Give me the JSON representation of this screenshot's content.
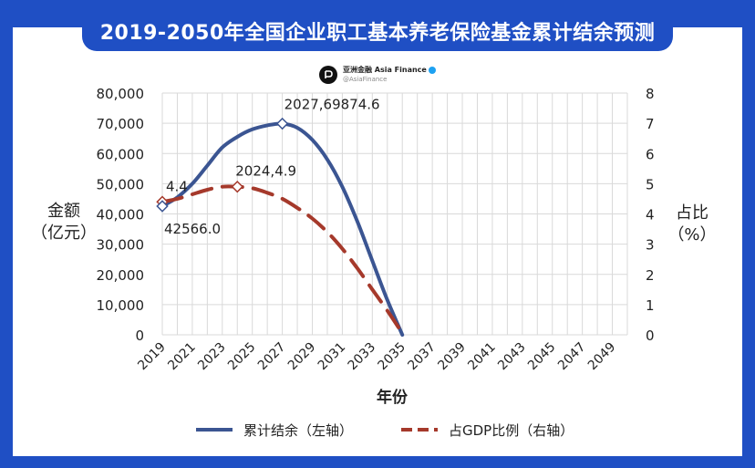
{
  "title": "2019-2050年全国企业职工基本养老保险基金累计结余预测",
  "brand": {
    "name": "亚洲金融 Asia Finance",
    "handle": "@AsiaFinance"
  },
  "colors": {
    "frame": "#1f4fc4",
    "balance": "#3b5592",
    "gdp_ratio": "#a5392b",
    "grid": "#d9d9d9"
  },
  "y_left_label": {
    "line1": "金额",
    "line2": "（亿元）"
  },
  "y_right_label": {
    "line1": "占比",
    "line2": "（%）"
  },
  "x_axis_label": "年份",
  "legend": {
    "balance": "累计结余（左轴）",
    "gdp_ratio": "占GDP比例（右轴）"
  },
  "chart_data": {
    "type": "line",
    "title": "2019-2050年全国企业职工基本养老保险基金累计结余预测",
    "xlabel": "年份",
    "ylabel": "金额（亿元）",
    "ylabel_right": "占比（%）",
    "x_ticks": [
      "2019",
      "2021",
      "2023",
      "2025",
      "2027",
      "2029",
      "2031",
      "2033",
      "2035",
      "2037",
      "2039",
      "2041",
      "2043",
      "2045",
      "2047",
      "2049"
    ],
    "xlim": [
      2019,
      2050
    ],
    "ylim": [
      0,
      80000
    ],
    "ylim_right": [
      0,
      8
    ],
    "y_ticks": [
      "0",
      "10,000",
      "20,000",
      "30,000",
      "40,000",
      "50,000",
      "60,000",
      "70,000",
      "80,000"
    ],
    "y_ticks_right": [
      "0",
      "1",
      "2",
      "3",
      "4",
      "5",
      "6",
      "7",
      "8"
    ],
    "grid": true,
    "series": [
      {
        "name": "累计结余（左轴）",
        "axis": "left",
        "style": "solid",
        "x": [
          2019,
          2020,
          2021,
          2022,
          2023,
          2024,
          2025,
          2026,
          2027,
          2028,
          2029,
          2030,
          2031,
          2032,
          2033,
          2034,
          2035
        ],
        "values": [
          42566.0,
          45500,
          50000,
          56000,
          62000,
          65500,
          68000,
          69300,
          69874.6,
          68500,
          64500,
          58000,
          49000,
          37500,
          24500,
          11500,
          0
        ]
      },
      {
        "name": "占GDP比例（右轴）",
        "axis": "right",
        "style": "dashed",
        "x": [
          2019,
          2020,
          2021,
          2022,
          2023,
          2024,
          2025,
          2026,
          2027,
          2028,
          2029,
          2030,
          2031,
          2032,
          2033,
          2034,
          2035
        ],
        "values": [
          4.4,
          4.5,
          4.65,
          4.8,
          4.9,
          4.9,
          4.85,
          4.7,
          4.5,
          4.2,
          3.85,
          3.4,
          2.85,
          2.2,
          1.5,
          0.8,
          0.05
        ]
      }
    ],
    "annotations": [
      {
        "text": "4.4",
        "series": "占GDP比例（右轴）",
        "x": 2019,
        "y": 4.4
      },
      {
        "text": "42566.0",
        "series": "累计结余（左轴）",
        "x": 2019,
        "y": 42566.0
      },
      {
        "text": "2024,4.9",
        "series": "占GDP比例（右轴）",
        "x": 2024,
        "y": 4.9
      },
      {
        "text": "2027,69874.6",
        "series": "累计结余（左轴）",
        "x": 2027,
        "y": 69874.6
      }
    ]
  }
}
